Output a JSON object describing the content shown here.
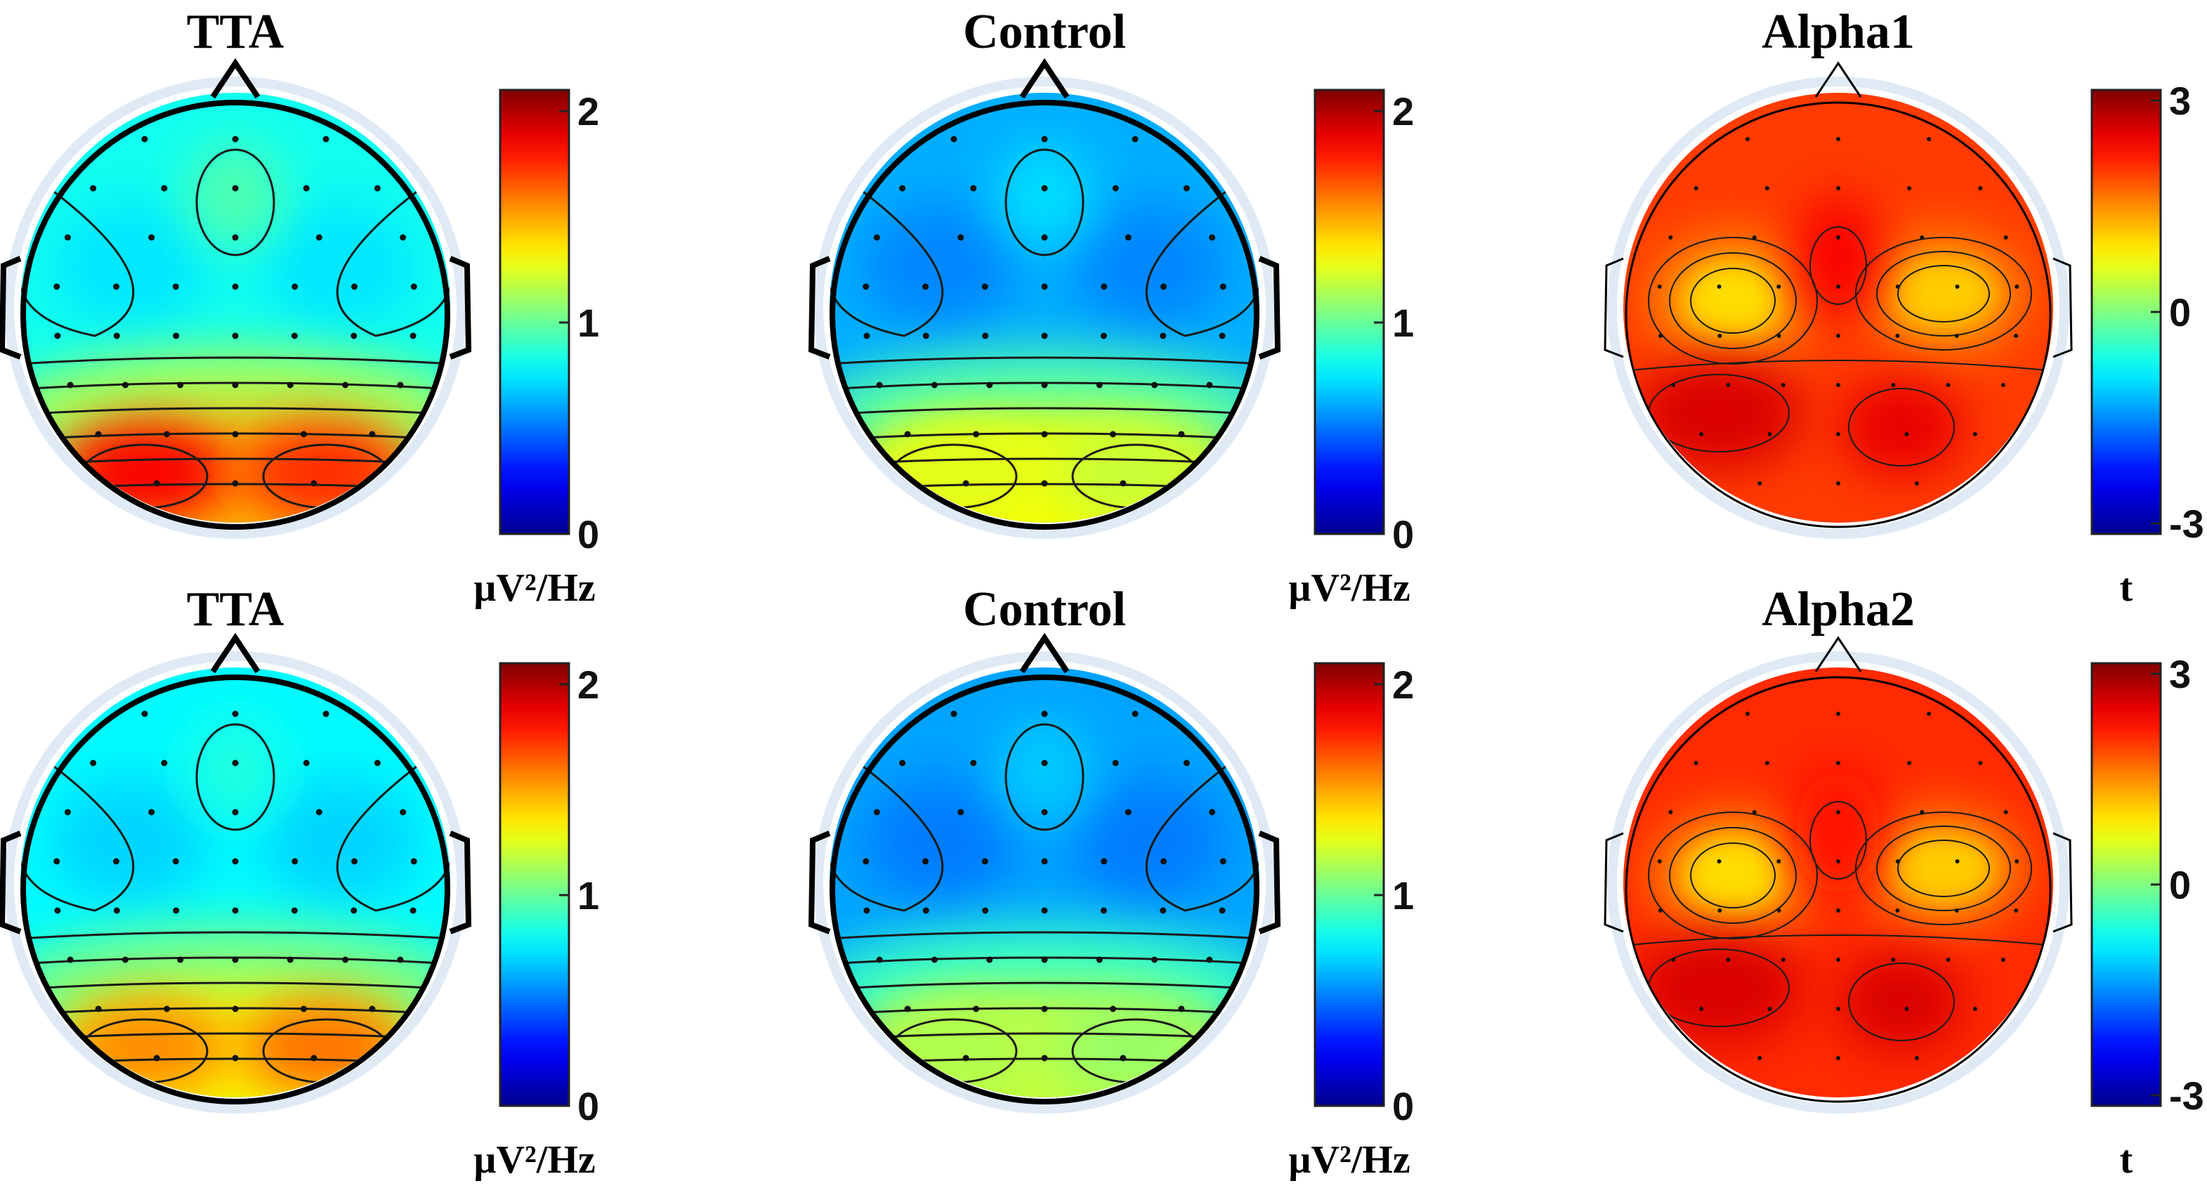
{
  "chart_data": [
    {
      "type": "heatmap",
      "title": "TTA",
      "colorbar": {
        "min": 0,
        "max": 2,
        "ticks": [
          {
            "label": "2",
            "value": 2
          },
          {
            "label": "1",
            "value": 1
          },
          {
            "label": "0",
            "value": 0
          }
        ],
        "unit": "µV²/Hz",
        "colormap": "jet",
        "ramp_min": 0,
        "ramp_max": 2.1
      },
      "regions": {
        "background": 0.82,
        "frontal_peak": 0.95,
        "occipital_left": 1.85,
        "occipital_right": 1.75,
        "occipital_mid": 1.45
      }
    },
    {
      "type": "heatmap",
      "title": "Control",
      "colorbar": {
        "min": 0,
        "max": 2,
        "ticks": [
          {
            "label": "2",
            "value": 2
          },
          {
            "label": "1",
            "value": 1
          },
          {
            "label": "0",
            "value": 0
          }
        ],
        "unit": "µV²/Hz",
        "colormap": "jet",
        "ramp_min": 0,
        "ramp_max": 2.1
      },
      "regions": {
        "background": 0.62,
        "frontal_peak": 0.72,
        "occipital_left": 1.25,
        "occipital_right": 1.2,
        "occipital_mid": 1.3
      }
    },
    {
      "type": "heatmap",
      "title": "Alpha1",
      "colorbar": {
        "min": -3,
        "max": 3,
        "ticks": [
          {
            "label": "3",
            "value": 3
          },
          {
            "label": "0",
            "value": 0
          },
          {
            "label": "-3",
            "value": -3
          }
        ],
        "unit": "t",
        "colormap": "jet",
        "ramp_min": -3.15,
        "ramp_max": 3.15
      },
      "regions": {
        "background": 2.0,
        "left_temporal_min": 1.0,
        "right_temporal_min": 1.1,
        "central_max": 2.4,
        "occipital_left_max": 2.6,
        "occipital_right_max": 2.5
      }
    },
    {
      "type": "heatmap",
      "title": "TTA",
      "colorbar": {
        "min": 0,
        "max": 2,
        "ticks": [
          {
            "label": "2",
            "value": 2
          },
          {
            "label": "1",
            "value": 1
          },
          {
            "label": "0",
            "value": 0
          }
        ],
        "unit": "µV²/Hz",
        "colormap": "jet",
        "ramp_min": 0,
        "ramp_max": 2.1
      },
      "regions": {
        "background": 0.78,
        "frontal_peak": 0.85,
        "occipital_left": 1.55,
        "occipital_right": 1.6,
        "occipital_mid": 1.3
      }
    },
    {
      "type": "heatmap",
      "title": "Control",
      "colorbar": {
        "min": 0,
        "max": 2,
        "ticks": [
          {
            "label": "2",
            "value": 2
          },
          {
            "label": "1",
            "value": 1
          },
          {
            "label": "0",
            "value": 0
          }
        ],
        "unit": "µV²/Hz",
        "colormap": "jet",
        "ramp_min": 0,
        "ramp_max": 2.1
      },
      "regions": {
        "background": 0.6,
        "frontal_peak": 0.68,
        "occipital_left": 1.15,
        "occipital_right": 1.1,
        "occipital_mid": 1.2
      }
    },
    {
      "type": "heatmap",
      "title": "Alpha2",
      "colorbar": {
        "min": -3,
        "max": 3,
        "ticks": [
          {
            "label": "3",
            "value": 3
          },
          {
            "label": "0",
            "value": 0
          },
          {
            "label": "-3",
            "value": -3
          }
        ],
        "unit": "t",
        "colormap": "jet",
        "ramp_min": -3.15,
        "ramp_max": 3.15
      },
      "regions": {
        "background": 2.1,
        "left_temporal_min": 1.0,
        "right_temporal_min": 1.1,
        "central_max": 2.3,
        "occipital_left_max": 2.6,
        "occipital_right_max": 2.6
      }
    }
  ]
}
